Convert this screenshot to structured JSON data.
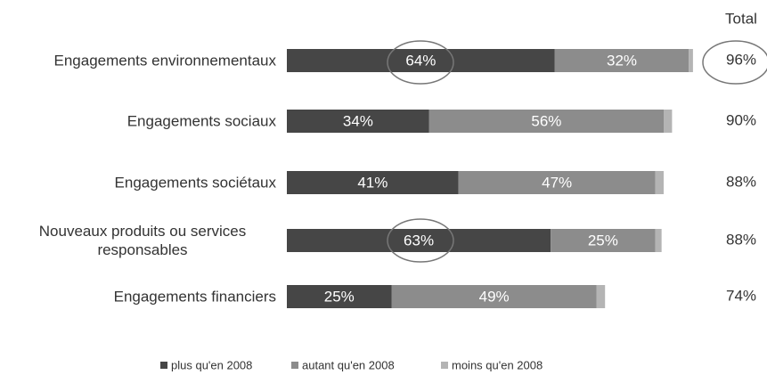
{
  "chart_data": {
    "type": "stacked-bar-horizontal",
    "categories": [
      "Engagements environnementaux",
      "Engagements sociaux",
      "Engagements sociétaux",
      "Nouveaux produits ou services responsables",
      "Engagements financiers"
    ],
    "series": [
      {
        "name": "plus qu'en 2008",
        "color": "#464646",
        "values": [
          64,
          34,
          41,
          63,
          25
        ],
        "value_labels": [
          "64%",
          "34%",
          "41%",
          "63%",
          "25%"
        ]
      },
      {
        "name": "autant qu'en 2008",
        "color": "#8c8c8c",
        "values": [
          32,
          56,
          47,
          25,
          49
        ],
        "value_labels": [
          "32%",
          "56%",
          "47%",
          "25%",
          "49%"
        ]
      },
      {
        "name": "moins qu'en 2008",
        "color": "#b4b4b4",
        "values": [
          1,
          2,
          2,
          1.5,
          2
        ]
      }
    ],
    "total_label": "Total",
    "totals": [
      96,
      90,
      88,
      88,
      74
    ],
    "total_labels": [
      "96%",
      "90%",
      "88%",
      "88%",
      "74%"
    ]
  }
}
